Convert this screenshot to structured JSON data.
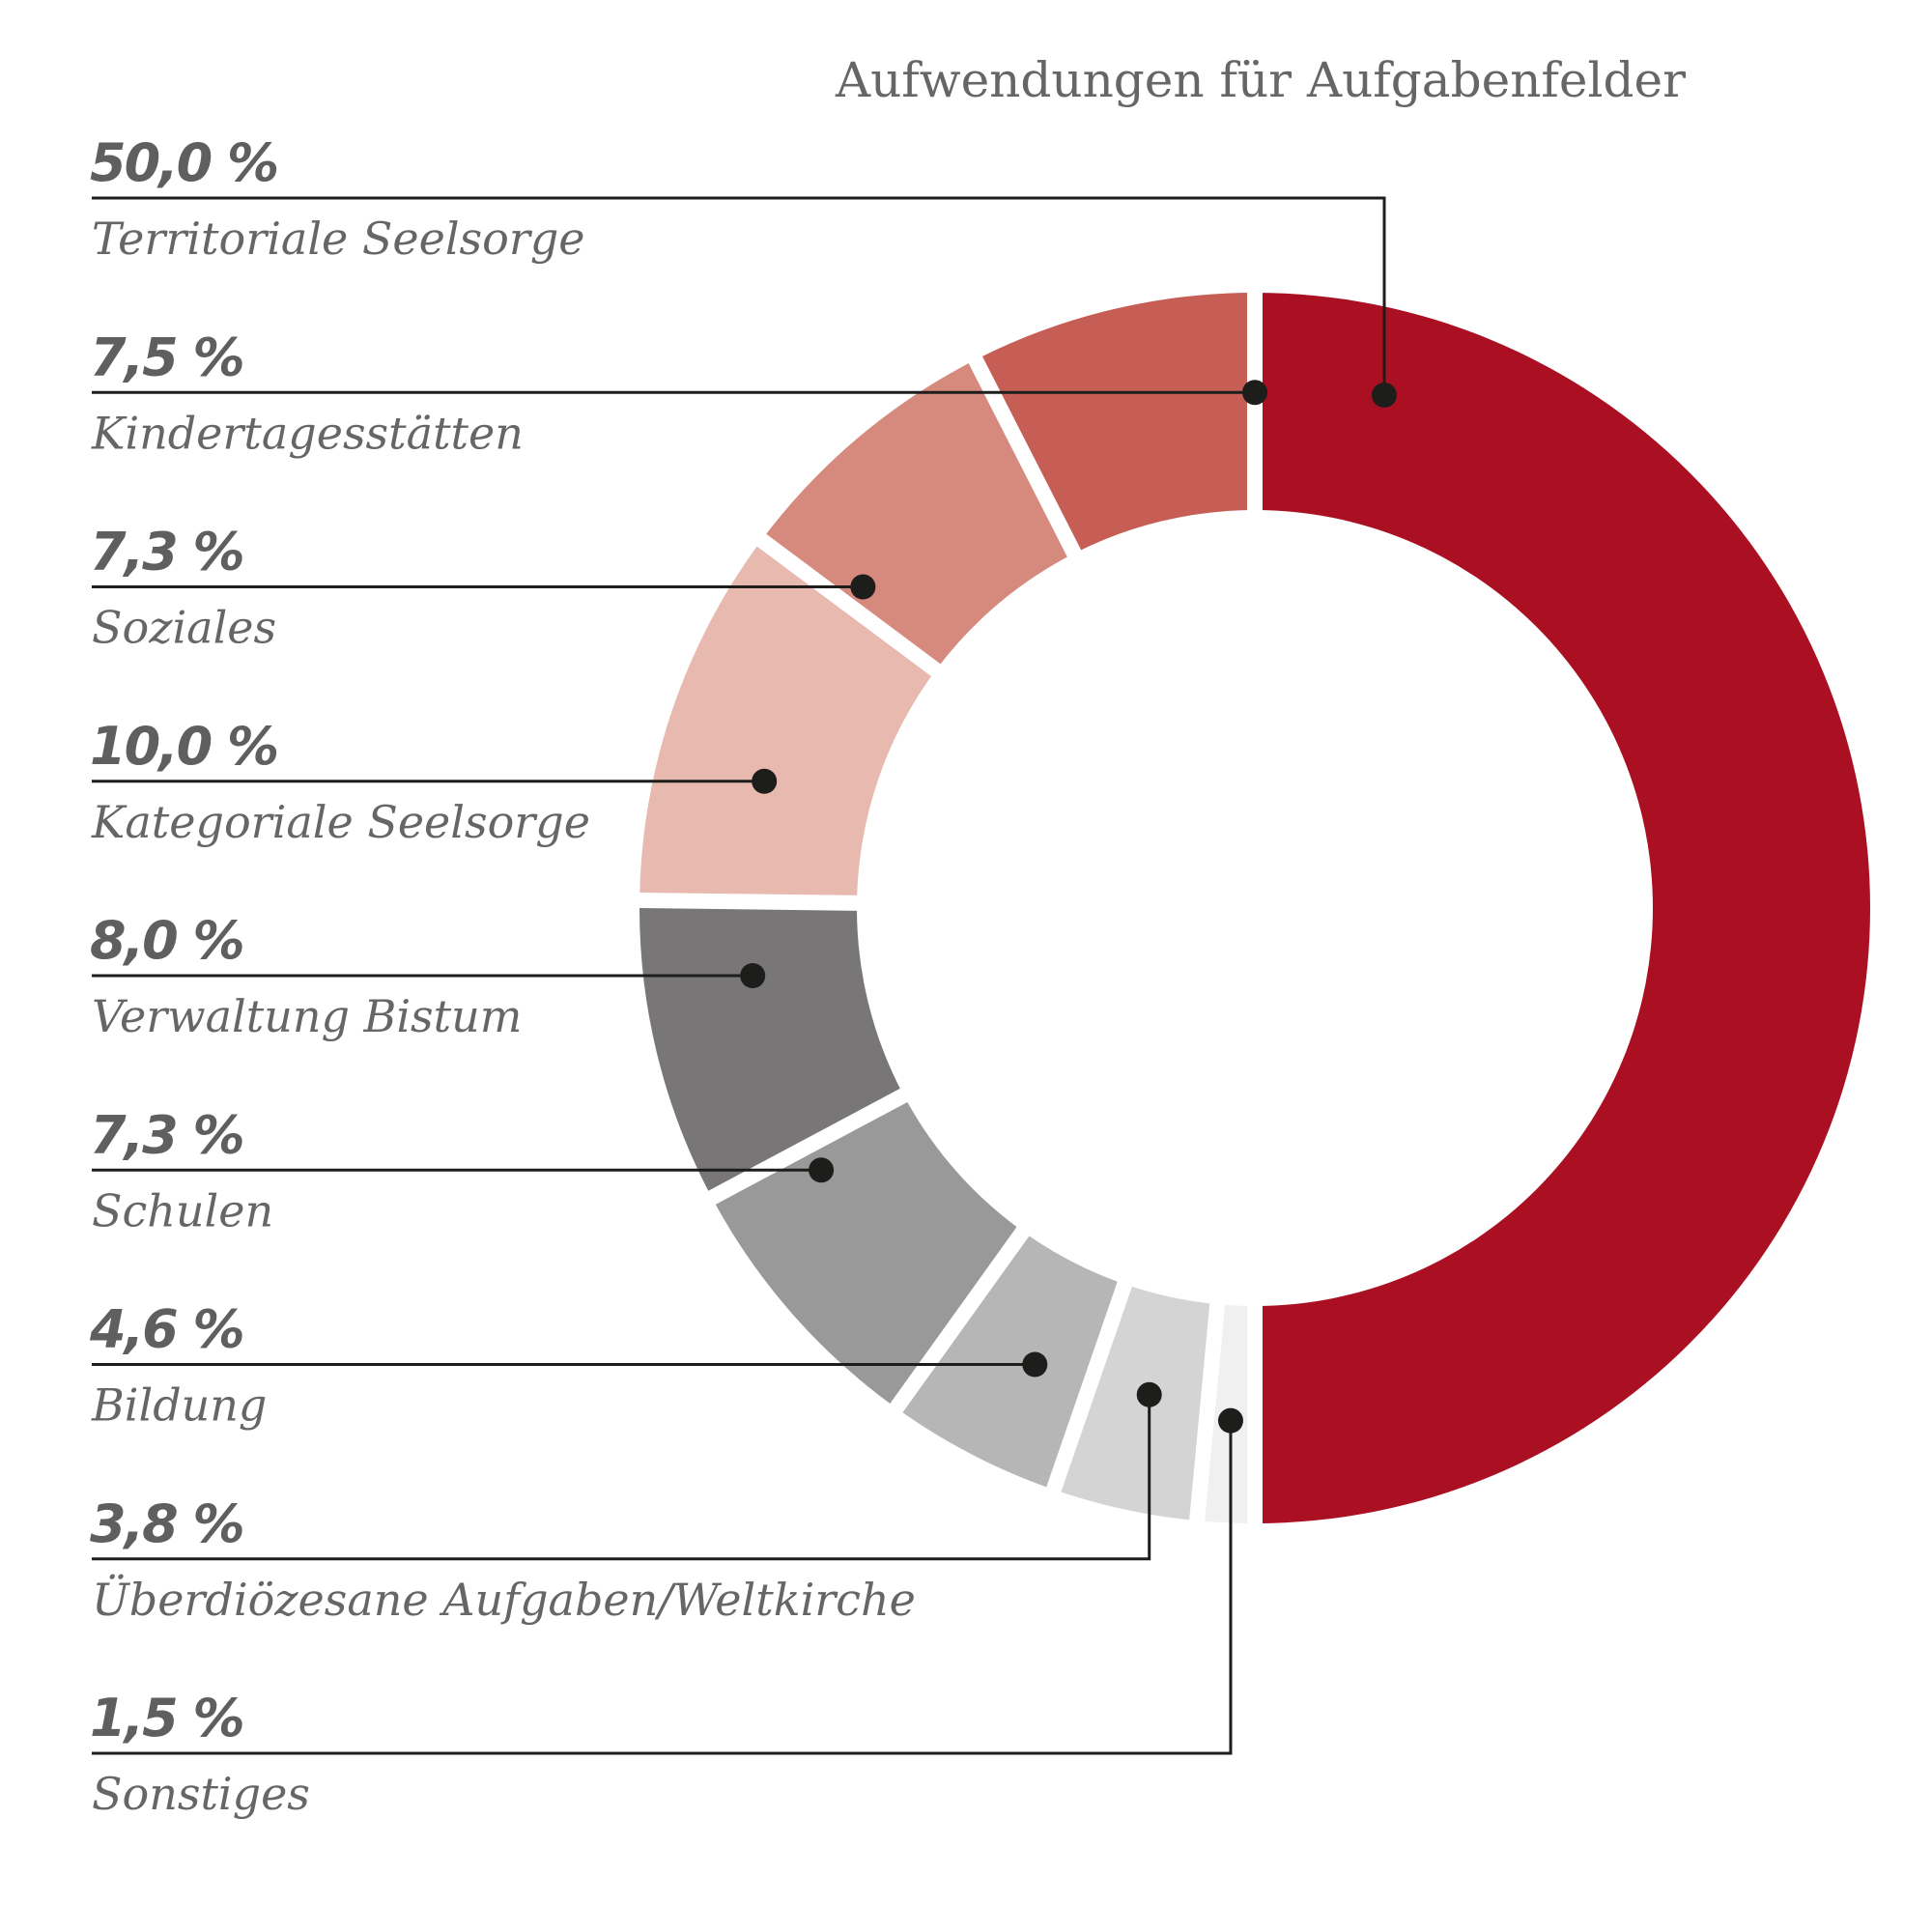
{
  "chart_data": {
    "type": "pie",
    "variant": "donut",
    "title": "Aufwendungen für Aufgabenfelder",
    "unit": "%",
    "categories": [
      "Territoriale Seelsorge",
      "Kindertagesstätten",
      "Soziales",
      "Kategoriale Seelsorge",
      "Verwaltung Bistum",
      "Schulen",
      "Bildung",
      "Überdiözesane Aufgaben/Weltkirche",
      "Sonstiges"
    ],
    "values": [
      50.0,
      7.5,
      7.3,
      10.0,
      8.0,
      7.3,
      4.6,
      3.8,
      1.5
    ],
    "value_labels": [
      "50,0 %",
      "7,5 %",
      "7,3 %",
      "10,0 %",
      "8,0 %",
      "7,3 %",
      "4,6 %",
      "3,8 %",
      "1,5 %"
    ],
    "colors": [
      "#ab1022",
      "#c65e56",
      "#d6897d",
      "#e8b9af",
      "#787677",
      "#999999",
      "#b7b6b6",
      "#d4d4d4",
      "#f0f0f0"
    ],
    "legend": "left"
  }
}
